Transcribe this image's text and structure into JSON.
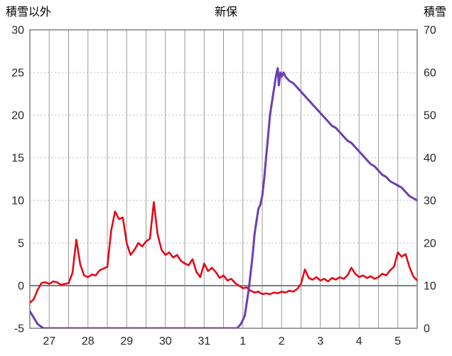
{
  "header": {
    "left_axis_title": "積雪以外",
    "title": "新保",
    "right_axis_title": "積雪"
  },
  "chart_data": {
    "type": "line",
    "title": "新保",
    "grid": true,
    "legend": "none",
    "left_axis": {
      "label": "積雪以外",
      "min": -5,
      "max": 30,
      "ticks": [
        30,
        25,
        20,
        15,
        10,
        5,
        0,
        -5
      ]
    },
    "right_axis": {
      "label": "積雪",
      "min": 0,
      "max": 70,
      "ticks": [
        70,
        60,
        50,
        40,
        30,
        20,
        10,
        0
      ]
    },
    "x_axis": {
      "day_labels": [
        "27",
        "28",
        "29",
        "30",
        "31",
        "1",
        "2",
        "3",
        "4",
        "5"
      ],
      "min": 0,
      "max": 10,
      "gridline_step": 0.5
    },
    "zero_line_value": 0,
    "series": [
      {
        "name": "積雪以外",
        "axis": "left",
        "color": "#e60012",
        "width": 2.5,
        "x_start": 0,
        "x_step": 0.1,
        "values": [
          -2.0,
          -1.6,
          -0.5,
          0.3,
          0.4,
          0.2,
          0.5,
          0.4,
          0.1,
          0.2,
          0.3,
          1.5,
          5.4,
          2.5,
          1.2,
          1.0,
          1.3,
          1.2,
          1.8,
          2.0,
          2.2,
          6.5,
          8.7,
          7.8,
          8.0,
          5.0,
          3.6,
          4.2,
          5.0,
          4.6,
          5.2,
          5.5,
          9.8,
          6.0,
          4.2,
          3.6,
          3.9,
          3.3,
          3.6,
          2.9,
          2.6,
          2.4,
          3.1,
          1.6,
          1.0,
          2.6,
          1.7,
          2.1,
          1.6,
          0.9,
          1.2,
          0.6,
          0.8,
          0.3,
          0.0,
          -0.3,
          -0.2,
          -0.6,
          -0.8,
          -0.7,
          -1.0,
          -0.9,
          -1.0,
          -0.8,
          -0.9,
          -0.7,
          -0.8,
          -0.6,
          -0.7,
          -0.4,
          0.2,
          1.9,
          0.9,
          0.7,
          1.0,
          0.6,
          0.8,
          0.5,
          0.9,
          0.7,
          1.0,
          0.8,
          1.2,
          2.1,
          1.4,
          1.0,
          1.2,
          0.9,
          1.1,
          0.8,
          1.0,
          1.4,
          1.2,
          1.8,
          2.2,
          3.9,
          3.4,
          3.7,
          2.2,
          1.1,
          0.6
        ]
      },
      {
        "name": "積雪",
        "axis": "right",
        "color": "#6b3fb0",
        "width": 3,
        "points": [
          [
            0,
            4
          ],
          [
            0.1,
            2.5
          ],
          [
            0.2,
            1
          ],
          [
            0.35,
            0
          ],
          [
            1,
            0
          ],
          [
            2,
            0
          ],
          [
            3,
            0
          ],
          [
            4,
            0
          ],
          [
            5,
            0
          ],
          [
            5.35,
            0
          ],
          [
            5.45,
            1
          ],
          [
            5.55,
            3
          ],
          [
            5.6,
            6
          ],
          [
            5.65,
            9
          ],
          [
            5.7,
            13
          ],
          [
            5.75,
            17
          ],
          [
            5.8,
            22
          ],
          [
            5.85,
            25
          ],
          [
            5.9,
            28
          ],
          [
            5.95,
            29
          ],
          [
            6.0,
            31
          ],
          [
            6.05,
            35
          ],
          [
            6.1,
            40
          ],
          [
            6.15,
            45
          ],
          [
            6.2,
            50
          ],
          [
            6.25,
            53
          ],
          [
            6.3,
            56
          ],
          [
            6.35,
            59
          ],
          [
            6.4,
            61
          ],
          [
            6.43,
            57
          ],
          [
            6.47,
            60
          ],
          [
            6.5,
            59
          ],
          [
            6.55,
            60
          ],
          [
            6.6,
            59
          ],
          [
            6.65,
            58.5
          ],
          [
            6.7,
            58
          ],
          [
            6.8,
            57.5
          ],
          [
            6.9,
            56.5
          ],
          [
            7.0,
            55.5
          ],
          [
            7.1,
            54.5
          ],
          [
            7.2,
            53.5
          ],
          [
            7.3,
            52.5
          ],
          [
            7.4,
            51.5
          ],
          [
            7.5,
            50.5
          ],
          [
            7.6,
            49.5
          ],
          [
            7.7,
            48.5
          ],
          [
            7.8,
            47.5
          ],
          [
            7.9,
            47
          ],
          [
            8.0,
            46
          ],
          [
            8.1,
            45
          ],
          [
            8.2,
            44
          ],
          [
            8.3,
            43.5
          ],
          [
            8.4,
            42.5
          ],
          [
            8.5,
            41.5
          ],
          [
            8.6,
            40.5
          ],
          [
            8.7,
            39.5
          ],
          [
            8.8,
            38.5
          ],
          [
            8.9,
            38
          ],
          [
            9.0,
            37
          ],
          [
            9.1,
            36
          ],
          [
            9.2,
            35.5
          ],
          [
            9.3,
            34.5
          ],
          [
            9.4,
            34
          ],
          [
            9.5,
            33.5
          ],
          [
            9.6,
            33
          ],
          [
            9.7,
            32
          ],
          [
            9.8,
            31
          ],
          [
            9.9,
            30.5
          ],
          [
            10,
            30
          ]
        ]
      }
    ],
    "style": {
      "v_grid_color": "#9a9a9a",
      "h_grid_color": "#bcbcbc",
      "frame_color": "#808080",
      "zero_line_color": "#7f7f7f",
      "tick_color": "#262626"
    }
  }
}
